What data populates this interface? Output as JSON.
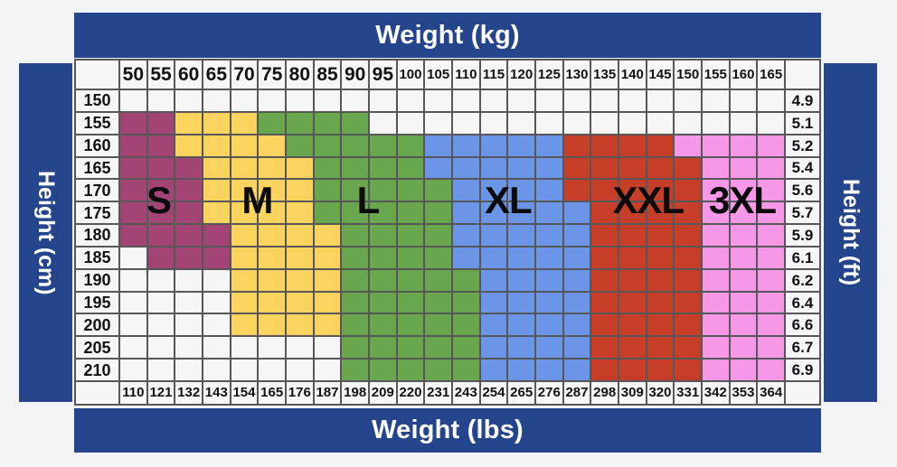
{
  "banners": {
    "top": "Weight (kg)",
    "bottom": "Weight (lbs)",
    "left": "Height (cm)",
    "right": "Height (ft)"
  },
  "colors": {
    "navy": "#24458c",
    "grid_line": "#57575a",
    "cell_bg": "#f6f6f7",
    "page_bg": "#f2f3f5",
    "S": "#a34574",
    "M": "#fbd45f",
    "L": "#69a74f",
    "XL": "#6b96e8",
    "XXL": "#c63d28",
    "3XL": "#f697e8"
  },
  "chart_data": {
    "type": "heatmap",
    "title": "Clothing size chart by height and weight",
    "x_axis_top_label": "Weight (kg)",
    "x_axis_bottom_label": "Weight (lbs)",
    "y_axis_left_label": "Height (cm)",
    "y_axis_right_label": "Height (ft)",
    "columns_kg": [
      50,
      55,
      60,
      65,
      70,
      75,
      80,
      85,
      90,
      95,
      100,
      105,
      110,
      115,
      120,
      125,
      130,
      135,
      140,
      145,
      150,
      155,
      160,
      165
    ],
    "columns_lbs": [
      110,
      121,
      132,
      143,
      154,
      165,
      176,
      187,
      198,
      209,
      220,
      231,
      243,
      254,
      265,
      276,
      287,
      298,
      309,
      320,
      331,
      342,
      353,
      364
    ],
    "rows_cm": [
      150,
      155,
      160,
      165,
      170,
      175,
      180,
      185,
      190,
      195,
      200,
      205,
      210
    ],
    "rows_ft": [
      "4.9",
      "5.1",
      "5.2",
      "5.4",
      "5.6",
      "5.7",
      "5.9",
      "6.1",
      "6.2",
      "6.4",
      "6.6",
      "6.7",
      "6.9"
    ],
    "legend_sizes": [
      "S",
      "M",
      "L",
      "XL",
      "XXL",
      "3XL"
    ],
    "cells": [
      [
        "",
        "",
        "",
        "",
        "",
        "",
        "",
        "",
        "",
        "",
        "",
        "",
        "",
        "",
        "",
        "",
        "",
        "",
        "",
        "",
        "",
        "",
        "",
        ""
      ],
      [
        "S",
        "S",
        "M",
        "M",
        "M",
        "L",
        "L",
        "L",
        "L",
        "",
        "",
        "",
        "",
        "",
        "",
        "",
        "",
        "",
        "",
        "",
        "",
        "",
        "",
        ""
      ],
      [
        "S",
        "S",
        "M",
        "M",
        "M",
        "M",
        "L",
        "L",
        "L",
        "L",
        "L",
        "XL",
        "XL",
        "XL",
        "XL",
        "XL",
        "XXL",
        "XXL",
        "XXL",
        "XXL",
        "3XL",
        "3XL",
        "3XL",
        "3XL"
      ],
      [
        "S",
        "S",
        "S",
        "M",
        "M",
        "M",
        "M",
        "L",
        "L",
        "L",
        "L",
        "XL",
        "XL",
        "XL",
        "XL",
        "XL",
        "XXL",
        "XXL",
        "XXL",
        "XXL",
        "XXL",
        "3XL",
        "3XL",
        "3XL"
      ],
      [
        "S",
        "S",
        "S",
        "M",
        "M",
        "M",
        "M",
        "L",
        "L",
        "L",
        "L",
        "L",
        "XL",
        "XL",
        "XL",
        "XL",
        "XXL",
        "XXL",
        "XXL",
        "XXL",
        "XXL",
        "3XL",
        "3XL",
        "3XL"
      ],
      [
        "S",
        "S",
        "S",
        "M",
        "M",
        "M",
        "M",
        "L",
        "L",
        "L",
        "L",
        "L",
        "XL",
        "XL",
        "XL",
        "XL",
        "XL",
        "XXL",
        "XXL",
        "XXL",
        "XXL",
        "3XL",
        "3XL",
        "3XL"
      ],
      [
        "S",
        "S",
        "S",
        "S",
        "M",
        "M",
        "M",
        "M",
        "L",
        "L",
        "L",
        "L",
        "XL",
        "XL",
        "XL",
        "XL",
        "XL",
        "XXL",
        "XXL",
        "XXL",
        "XXL",
        "3XL",
        "3XL",
        "3XL"
      ],
      [
        "",
        "S",
        "S",
        "S",
        "M",
        "M",
        "M",
        "M",
        "L",
        "L",
        "L",
        "L",
        "XL",
        "XL",
        "XL",
        "XL",
        "XL",
        "XXL",
        "XXL",
        "XXL",
        "XXL",
        "3XL",
        "3XL",
        "3XL"
      ],
      [
        "",
        "",
        "",
        "",
        "M",
        "M",
        "M",
        "M",
        "L",
        "L",
        "L",
        "L",
        "L",
        "XL",
        "XL",
        "XL",
        "XL",
        "XXL",
        "XXL",
        "XXL",
        "XXL",
        "3XL",
        "3XL",
        "3XL"
      ],
      [
        "",
        "",
        "",
        "",
        "M",
        "M",
        "M",
        "M",
        "L",
        "L",
        "L",
        "L",
        "L",
        "XL",
        "XL",
        "XL",
        "XL",
        "XXL",
        "XXL",
        "XXL",
        "XXL",
        "3XL",
        "3XL",
        "3XL"
      ],
      [
        "",
        "",
        "",
        "",
        "M",
        "M",
        "M",
        "M",
        "L",
        "L",
        "L",
        "L",
        "L",
        "XL",
        "XL",
        "XL",
        "XL",
        "XXL",
        "XXL",
        "XXL",
        "XXL",
        "3XL",
        "3XL",
        "3XL"
      ],
      [
        "",
        "",
        "",
        "",
        "",
        "",
        "",
        "",
        "L",
        "L",
        "L",
        "L",
        "L",
        "XL",
        "XL",
        "XL",
        "XL",
        "XXL",
        "XXL",
        "XXL",
        "XXL",
        "3XL",
        "3XL",
        "3XL"
      ],
      [
        "",
        "",
        "",
        "",
        "",
        "",
        "",
        "",
        "L",
        "L",
        "L",
        "L",
        "L",
        "XL",
        "XL",
        "XL",
        "XL",
        "XXL",
        "XXL",
        "XXL",
        "XXL",
        "3XL",
        "3XL",
        "3XL"
      ]
    ],
    "size_labels": [
      {
        "text": "S",
        "col": 1.45,
        "row": 5
      },
      {
        "text": "M",
        "col": 5.0,
        "row": 5
      },
      {
        "text": "L",
        "col": 9.0,
        "row": 5
      },
      {
        "text": "XL",
        "col": 14.05,
        "row": 5
      },
      {
        "text": "XXL",
        "col": 19.1,
        "row": 5
      },
      {
        "text": "3XL",
        "col": 22.5,
        "row": 5
      }
    ]
  }
}
